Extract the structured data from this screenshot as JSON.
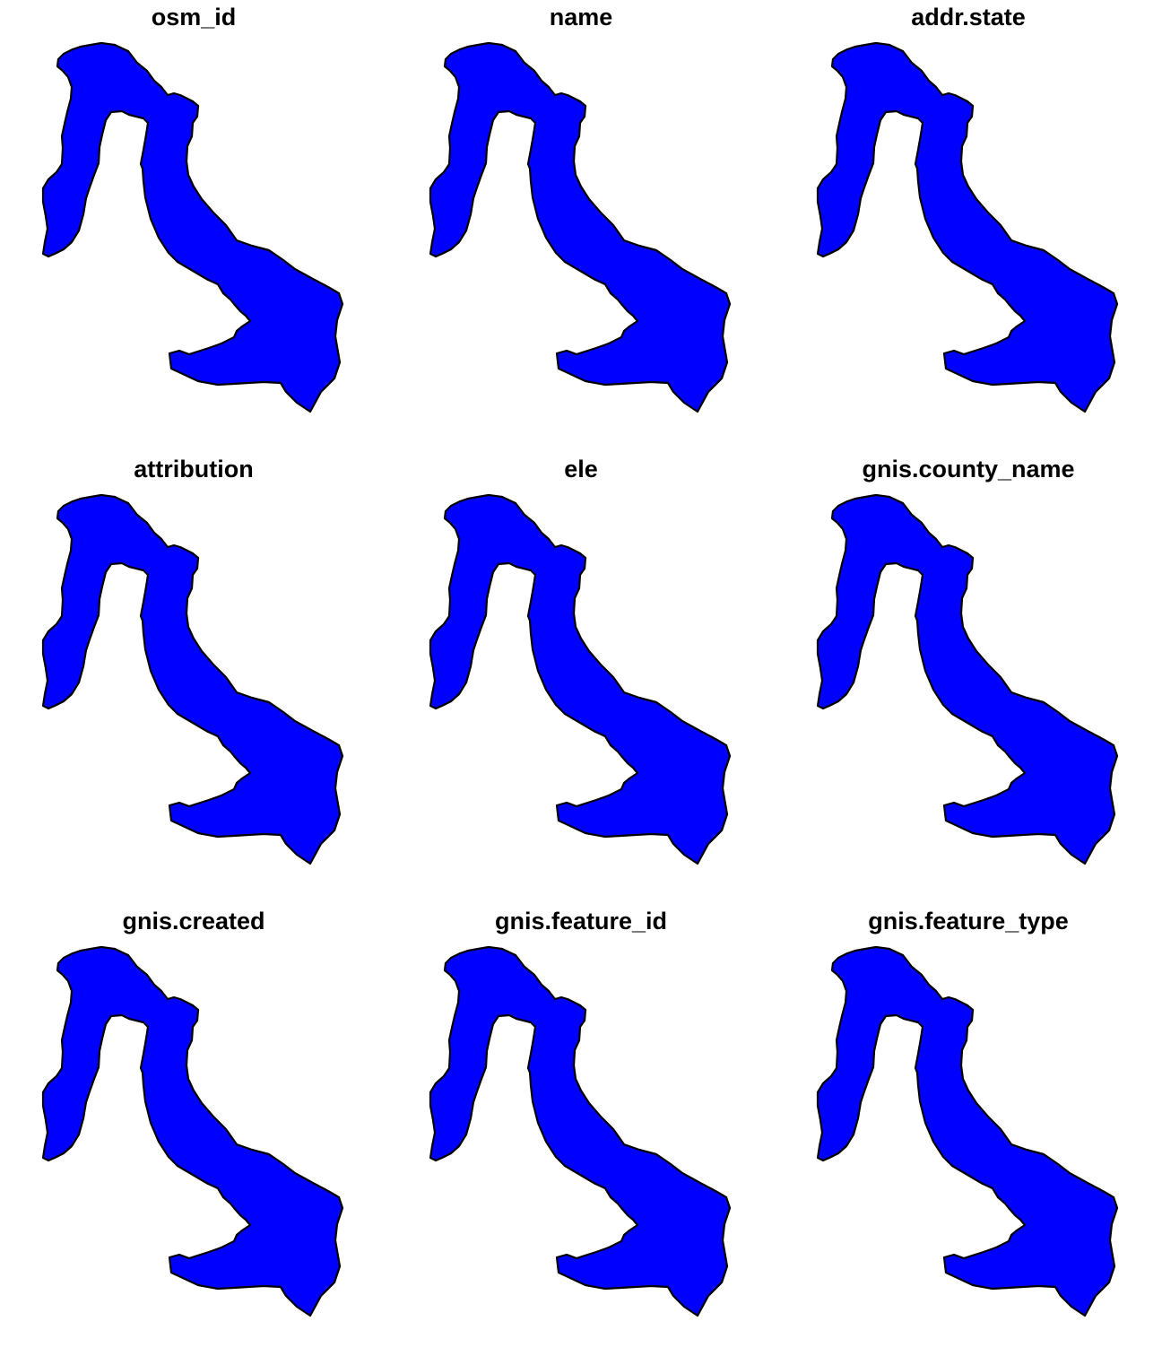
{
  "panels": [
    {
      "title": "osm_id"
    },
    {
      "title": "name"
    },
    {
      "title": "addr.state"
    },
    {
      "title": "attribution"
    },
    {
      "title": "ele"
    },
    {
      "title": "gnis.county_name"
    },
    {
      "title": "gnis.created"
    },
    {
      "title": "gnis.feature_id"
    },
    {
      "title": "gnis.feature_type"
    }
  ],
  "colors": {
    "fill": "#0000ff",
    "stroke": "#000000",
    "background": "#ffffff"
  }
}
